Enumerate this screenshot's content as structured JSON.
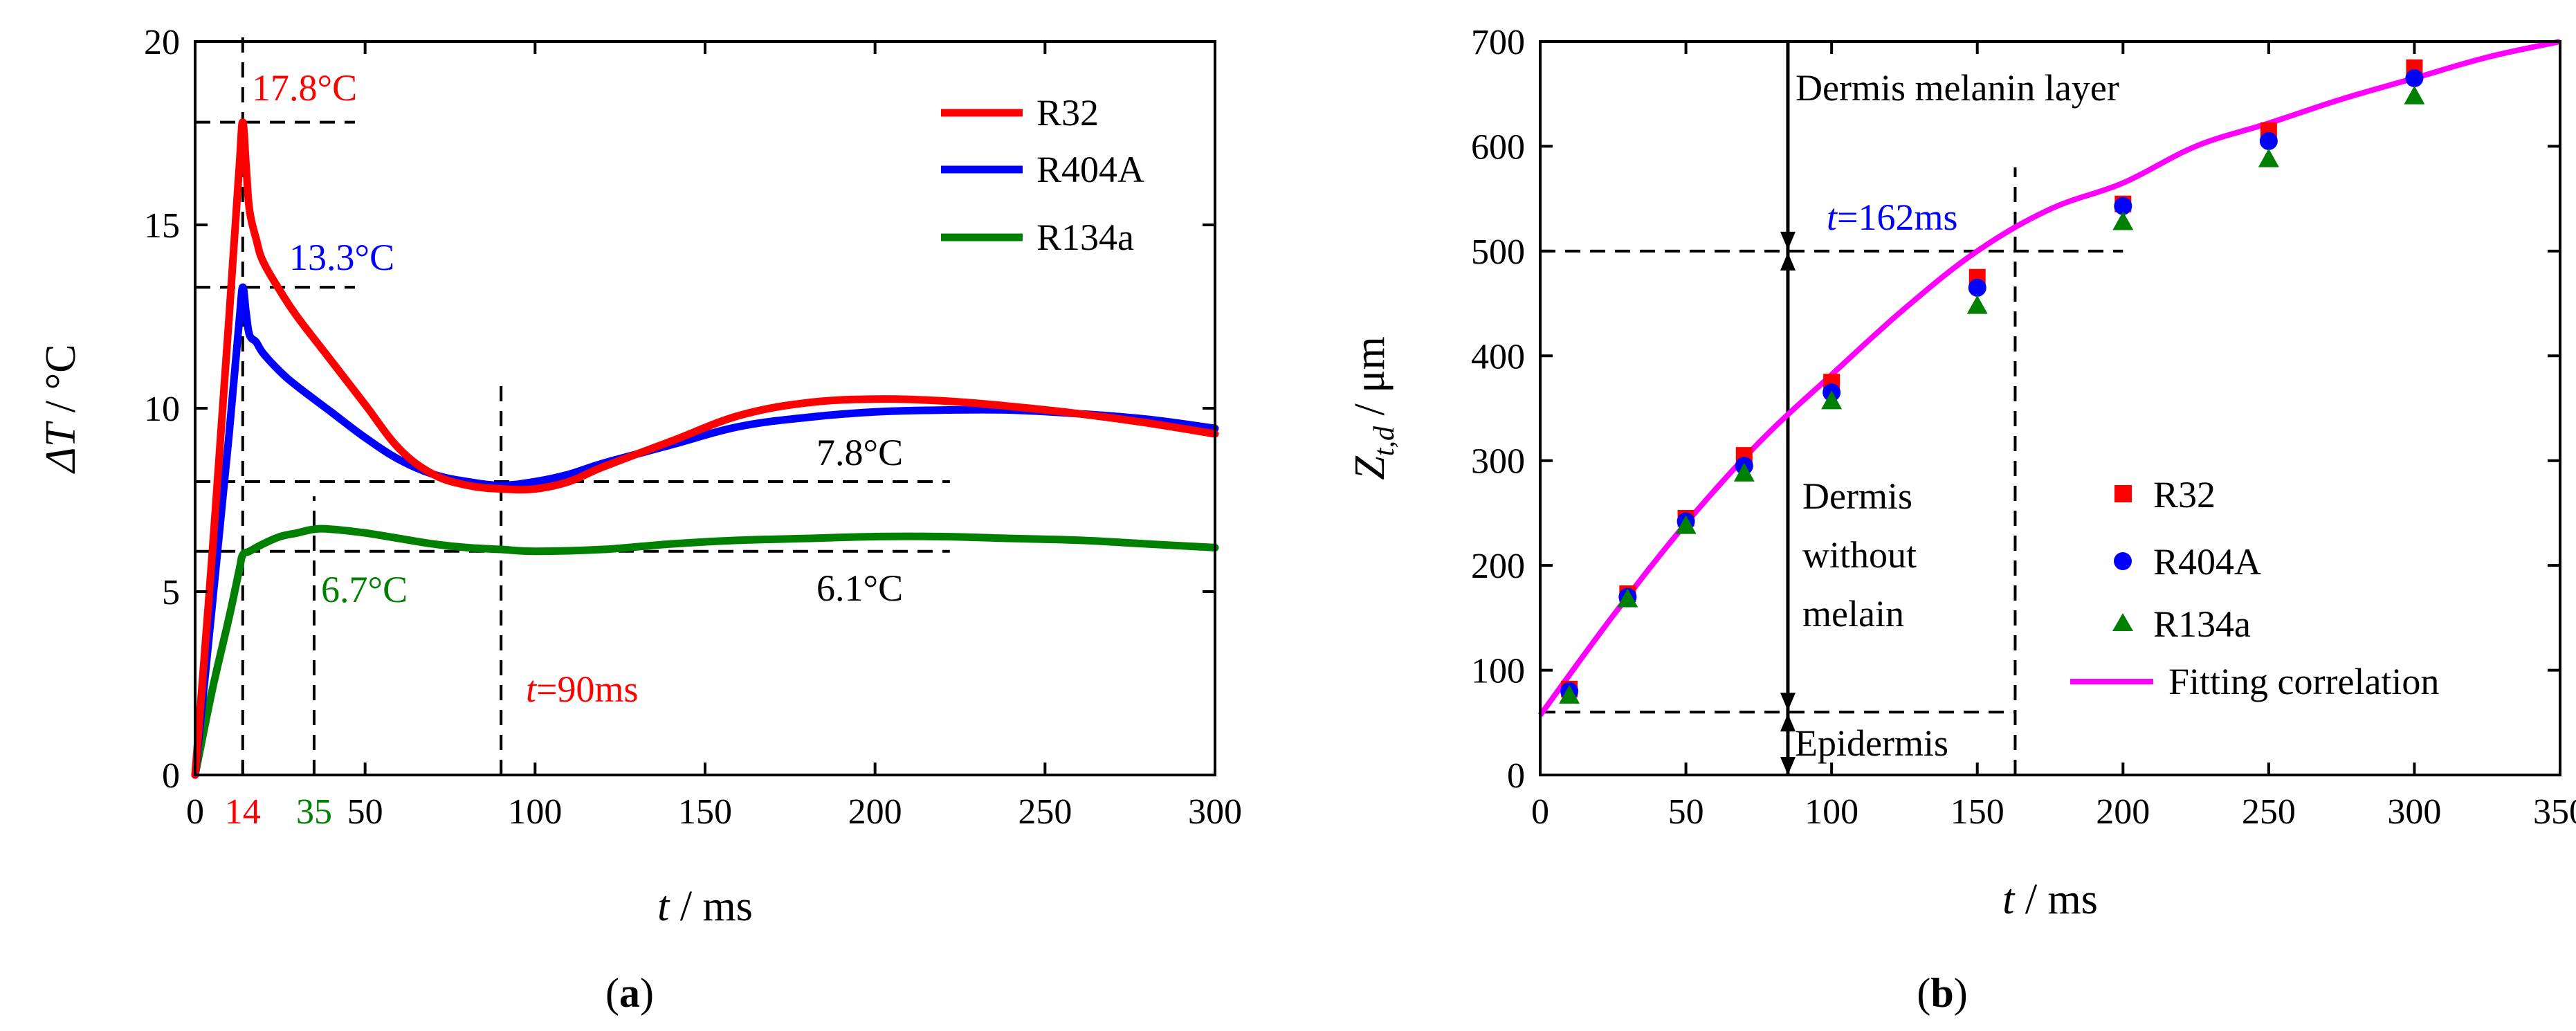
{
  "chart_data": [
    {
      "type": "line",
      "panel": "(a)",
      "caption_pre": "(",
      "caption_letter": "a",
      "caption_post": ")",
      "xlabel_var": "t",
      "xlabel_unit": " / ms",
      "ylabel_var": "ΔT",
      "ylabel_unit": " / °C",
      "xlim": [
        0,
        300
      ],
      "ylim": [
        0,
        20
      ],
      "xticks": [
        0,
        50,
        100,
        150,
        200,
        250,
        300
      ],
      "xtick_labels": [
        "0",
        "50",
        "100",
        "150",
        "200",
        "250",
        "300"
      ],
      "yticks": [
        0,
        5,
        10,
        15,
        20
      ],
      "ytick_labels": [
        "0",
        "5",
        "10",
        "15",
        "20"
      ],
      "extra_xticks": [
        {
          "value": 14,
          "label": "14",
          "color": "#ff0000"
        },
        {
          "value": 35,
          "label": "35",
          "color": "#008000"
        }
      ],
      "legend_position": "top-right",
      "series": [
        {
          "name": "R32",
          "color": "#ff0000",
          "x": [
            0,
            5,
            10,
            13,
            14,
            15,
            16,
            18,
            20,
            25,
            30,
            40,
            50,
            60,
            70,
            80,
            90,
            100,
            110,
            120,
            140,
            160,
            180,
            200,
            220,
            240,
            260,
            280,
            300
          ],
          "y": [
            0,
            6,
            12.5,
            16.6,
            17.8,
            16.6,
            15.4,
            14.6,
            14.0,
            13.2,
            12.5,
            11.3,
            10.1,
            8.9,
            8.2,
            7.9,
            7.8,
            7.8,
            8.0,
            8.4,
            9.1,
            9.8,
            10.15,
            10.25,
            10.2,
            10.05,
            9.85,
            9.6,
            9.3
          ]
        },
        {
          "name": "R404A",
          "color": "#0000ff",
          "x": [
            0,
            5,
            10,
            13,
            14,
            15,
            16,
            18,
            20,
            25,
            30,
            40,
            50,
            60,
            70,
            80,
            90,
            100,
            110,
            120,
            140,
            160,
            180,
            200,
            220,
            240,
            260,
            280,
            300
          ],
          "y": [
            0,
            4.6,
            9.3,
            12.4,
            13.3,
            12.6,
            12.0,
            11.8,
            11.5,
            11.0,
            10.6,
            9.9,
            9.2,
            8.6,
            8.2,
            8.0,
            7.9,
            8.0,
            8.2,
            8.5,
            9.0,
            9.5,
            9.75,
            9.9,
            9.95,
            9.95,
            9.85,
            9.7,
            9.45
          ]
        },
        {
          "name": "R134a",
          "color": "#008000",
          "x": [
            0,
            5,
            10,
            13,
            14,
            16,
            20,
            25,
            30,
            35,
            40,
            50,
            60,
            70,
            80,
            90,
            100,
            120,
            140,
            160,
            180,
            200,
            220,
            240,
            260,
            280,
            300
          ],
          "y": [
            0,
            2.3,
            4.3,
            5.6,
            6.0,
            6.1,
            6.3,
            6.5,
            6.6,
            6.7,
            6.7,
            6.6,
            6.45,
            6.3,
            6.2,
            6.15,
            6.1,
            6.15,
            6.3,
            6.4,
            6.45,
            6.5,
            6.5,
            6.45,
            6.4,
            6.3,
            6.2
          ]
        }
      ],
      "annotations": [
        {
          "text": "17.8°C",
          "color": "#ff0000"
        },
        {
          "text": "13.3°C",
          "color": "#0000ff"
        },
        {
          "text": "7.8°C",
          "color": "#000000"
        },
        {
          "text": "6.7°C",
          "color": "#008000"
        },
        {
          "text": "6.1°C",
          "color": "#000000"
        }
      ],
      "time_annotation": {
        "var": "t",
        "rest": "=90ms",
        "color": "#ff0000"
      },
      "guides": {
        "peak_time": 14,
        "green_peak_time": 35,
        "min_time": 90,
        "levels": [
          17.8,
          13.3,
          8.0,
          6.1
        ]
      }
    },
    {
      "type": "scatter",
      "panel": "(b)",
      "caption_pre": "(",
      "caption_letter": "b",
      "caption_post": ")",
      "xlabel_var": "t",
      "xlabel_unit": " / ms",
      "ylabel_var": "Z",
      "ylabel_sub": "t,d",
      "ylabel_unit": "  / μm",
      "xlim": [
        0,
        350
      ],
      "ylim": [
        0,
        700
      ],
      "xticks": [
        0,
        50,
        100,
        150,
        200,
        250,
        300,
        350
      ],
      "xtick_labels": [
        "0",
        "50",
        "100",
        "150",
        "200",
        "250",
        "300",
        "350"
      ],
      "yticks": [
        0,
        100,
        200,
        300,
        400,
        500,
        600,
        700
      ],
      "ytick_labels": [
        "0",
        "100",
        "200",
        "300",
        "400",
        "500",
        "600",
        "700"
      ],
      "legend_position": "bottom-right",
      "series": [
        {
          "name": "R32",
          "color": "#ff0000",
          "marker": "square",
          "x": [
            10,
            30,
            50,
            70,
            100,
            150,
            200,
            250,
            300
          ],
          "y": [
            82,
            173,
            245,
            305,
            375,
            475,
            545,
            615,
            675
          ]
        },
        {
          "name": "R404A",
          "color": "#0000ff",
          "marker": "circle",
          "x": [
            10,
            30,
            50,
            70,
            100,
            150,
            200,
            250,
            300
          ],
          "y": [
            80,
            170,
            242,
            295,
            365,
            465,
            543,
            605,
            665
          ]
        },
        {
          "name": "R134a",
          "color": "#008000",
          "marker": "triangle",
          "x": [
            10,
            30,
            50,
            70,
            100,
            150,
            200,
            250,
            300
          ],
          "y": [
            76,
            168,
            238,
            288,
            357,
            448,
            528,
            588,
            648
          ]
        },
        {
          "name": "Fitting correlation",
          "color": "#ff00ff",
          "marker": "line",
          "x": [
            0,
            25,
            50,
            75,
            100,
            125,
            150,
            175,
            200,
            225,
            250,
            275,
            300,
            325,
            350
          ],
          "y": [
            57,
            152,
            240,
            317,
            382,
            445,
            500,
            540,
            565,
            600,
            622,
            645,
            665,
            685,
            700
          ]
        }
      ],
      "region_labels": [
        "Dermis melanin layer",
        "Dermis",
        "without",
        "melain",
        "Epidermis"
      ],
      "time_annotation": {
        "var": "t",
        "rest": "=162ms",
        "color": "#0000ff"
      },
      "guides": {
        "boundary_time": 85,
        "t162": 163,
        "level_500": 500,
        "level_60": 60
      }
    }
  ]
}
